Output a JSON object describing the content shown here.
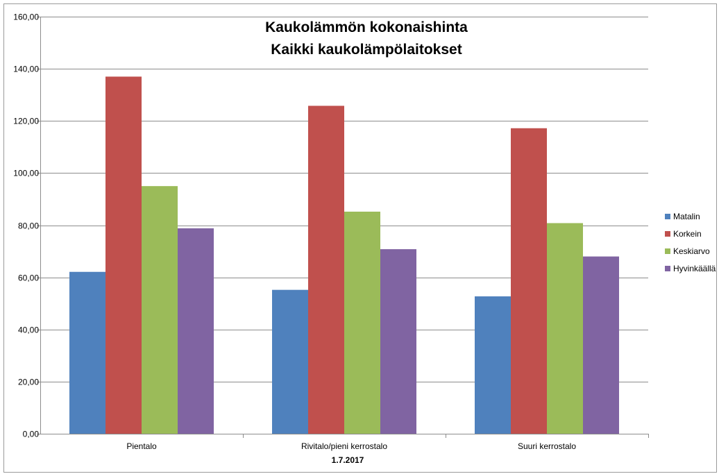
{
  "chart_data": {
    "type": "bar",
    "title": "Kaukolämmön kokonaishinta",
    "subtitle": "Kaikki kaukolämpölaitokset",
    "xlabel": "1.7.2017",
    "ylabel": "",
    "ylim": [
      0,
      160
    ],
    "ytick_step": 20,
    "ytick_labels": [
      "0,00",
      "20,00",
      "40,00",
      "60,00",
      "80,00",
      "100,00",
      "120,00",
      "140,00",
      "160,00"
    ],
    "grid": true,
    "legend_position": "right",
    "categories": [
      "Pientalo",
      "Rivitalo/pieni kerrostalo",
      "Suuri kerrostalo"
    ],
    "series": [
      {
        "name": "Matalin",
        "color": "#4f81bd",
        "values": [
          62.1,
          55.2,
          52.7
        ]
      },
      {
        "name": "Korkein",
        "color": "#c0504d",
        "values": [
          137.0,
          125.8,
          117.2
        ]
      },
      {
        "name": "Keskiarvo",
        "color": "#9bbb59",
        "values": [
          95.0,
          85.2,
          80.8
        ]
      },
      {
        "name": "Hyvinkäällä",
        "color": "#8064a2",
        "values": [
          78.8,
          70.8,
          68.0
        ]
      }
    ]
  }
}
